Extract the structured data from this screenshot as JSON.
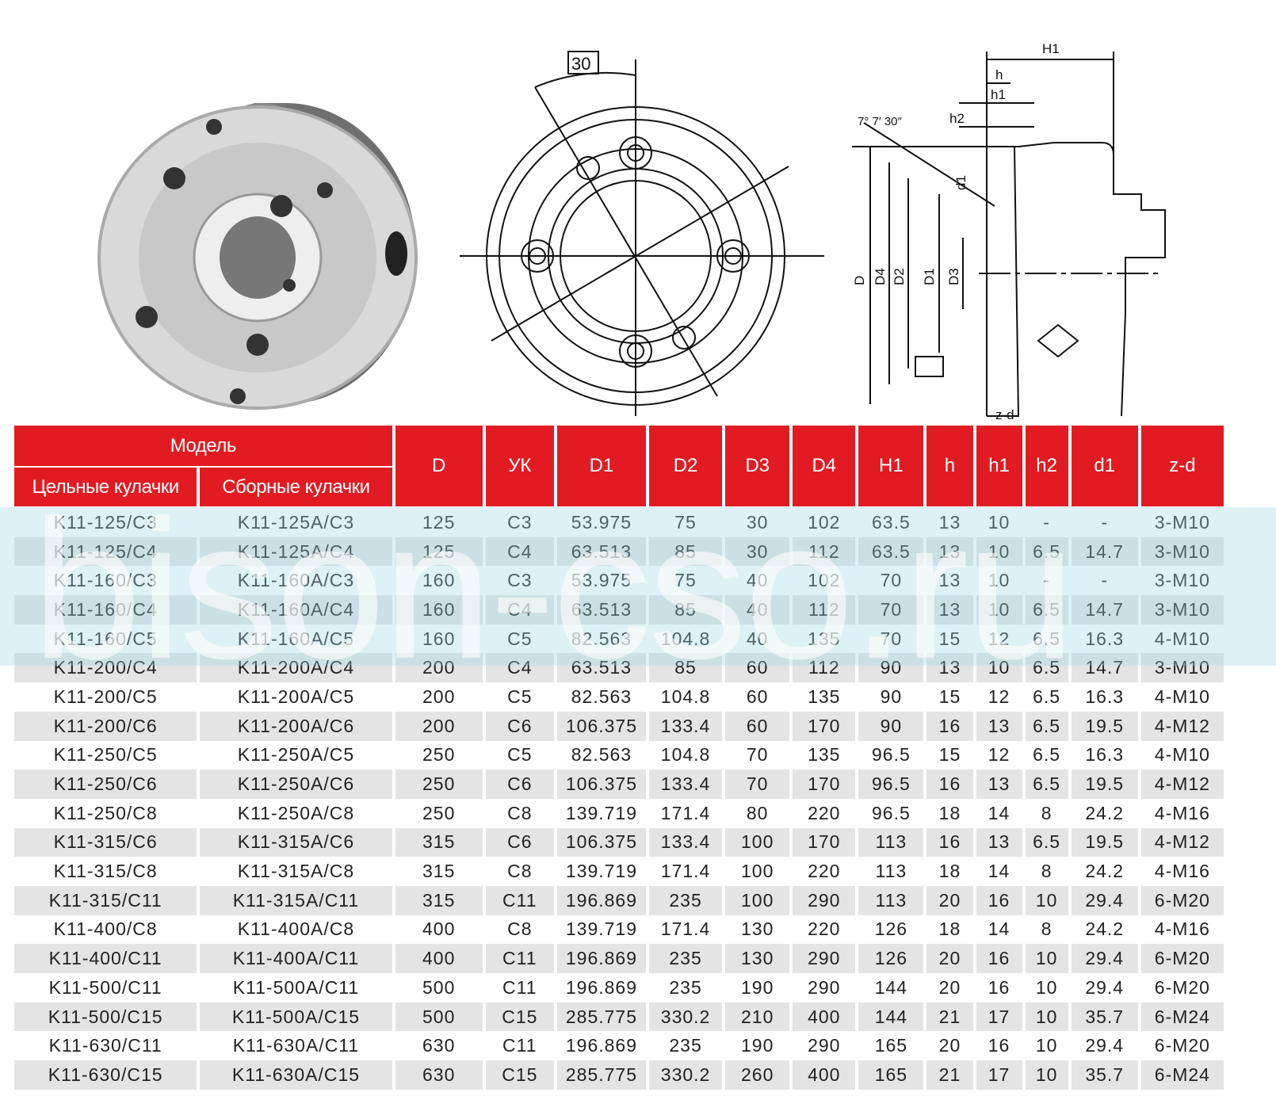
{
  "watermark": "bison-cso.ru",
  "drawing": {
    "angle_label": "30",
    "taper_label": "7° 7′ 30″",
    "dims": {
      "H1": "H1",
      "h": "h",
      "h1": "h1",
      "h2": "h2",
      "d1": "d1",
      "D": "D",
      "D4": "D4",
      "D2": "D2",
      "D1": "D1",
      "D3": "D3",
      "zd": "z-d"
    }
  },
  "table": {
    "group_header": "Модель",
    "sub_headers": [
      "Цельные кулачки",
      "Сборные кулачки"
    ],
    "columns": [
      "D",
      "УК",
      "D1",
      "D2",
      "D3",
      "D4",
      "H1",
      "h",
      "h1",
      "h2",
      "d1",
      "z-d"
    ],
    "rows": [
      [
        "K11-125/C3",
        "K11-125A/C3",
        "125",
        "C3",
        "53.975",
        "75",
        "30",
        "102",
        "63.5",
        "13",
        "10",
        "-",
        "-",
        "3-M10"
      ],
      [
        "K11-125/C4",
        "K11-125A/C4",
        "125",
        "C4",
        "63.513",
        "85",
        "30",
        "112",
        "63.5",
        "13",
        "10",
        "6.5",
        "14.7",
        "3-M10"
      ],
      [
        "K11-160/C3",
        "K11-160A/C3",
        "160",
        "C3",
        "53.975",
        "75",
        "40",
        "102",
        "70",
        "13",
        "10",
        "-",
        "-",
        "3-M10"
      ],
      [
        "K11-160/C4",
        "K11-160A/C4",
        "160",
        "C4",
        "63.513",
        "85",
        "40",
        "112",
        "70",
        "13",
        "10",
        "6.5",
        "14.7",
        "3-M10"
      ],
      [
        "K11-160/C5",
        "K11-160A/C5",
        "160",
        "C5",
        "82.563",
        "104.8",
        "40",
        "135",
        "70",
        "15",
        "12",
        "6.5",
        "16.3",
        "4-M10"
      ],
      [
        "K11-200/C4",
        "K11-200A/C4",
        "200",
        "C4",
        "63.513",
        "85",
        "60",
        "112",
        "90",
        "13",
        "10",
        "6.5",
        "14.7",
        "3-M10"
      ],
      [
        "K11-200/C5",
        "K11-200A/C5",
        "200",
        "C5",
        "82.563",
        "104.8",
        "60",
        "135",
        "90",
        "15",
        "12",
        "6.5",
        "16.3",
        "4-M10"
      ],
      [
        "K11-200/C6",
        "K11-200A/C6",
        "200",
        "C6",
        "106.375",
        "133.4",
        "60",
        "170",
        "90",
        "16",
        "13",
        "6.5",
        "19.5",
        "4-M12"
      ],
      [
        "K11-250/C5",
        "K11-250A/C5",
        "250",
        "C5",
        "82.563",
        "104.8",
        "70",
        "135",
        "96.5",
        "15",
        "12",
        "6.5",
        "16.3",
        "4-M10"
      ],
      [
        "K11-250/C6",
        "K11-250A/C6",
        "250",
        "C6",
        "106.375",
        "133.4",
        "70",
        "170",
        "96.5",
        "16",
        "13",
        "6.5",
        "19.5",
        "4-M12"
      ],
      [
        "K11-250/C8",
        "K11-250A/C8",
        "250",
        "C8",
        "139.719",
        "171.4",
        "80",
        "220",
        "96.5",
        "18",
        "14",
        "8",
        "24.2",
        "4-M16"
      ],
      [
        "K11-315/C6",
        "K11-315A/C6",
        "315",
        "C6",
        "106.375",
        "133.4",
        "100",
        "170",
        "113",
        "16",
        "13",
        "6.5",
        "19.5",
        "4-M12"
      ],
      [
        "K11-315/C8",
        "K11-315A/C8",
        "315",
        "C8",
        "139.719",
        "171.4",
        "100",
        "220",
        "113",
        "18",
        "14",
        "8",
        "24.2",
        "4-M16"
      ],
      [
        "K11-315/C11",
        "K11-315A/C11",
        "315",
        "C11",
        "196.869",
        "235",
        "100",
        "290",
        "113",
        "20",
        "16",
        "10",
        "29.4",
        "6-M20"
      ],
      [
        "K11-400/C8",
        "K11-400A/C8",
        "400",
        "C8",
        "139.719",
        "171.4",
        "130",
        "220",
        "126",
        "18",
        "14",
        "8",
        "24.2",
        "4-M16"
      ],
      [
        "K11-400/C11",
        "K11-400A/C11",
        "400",
        "C11",
        "196.869",
        "235",
        "130",
        "290",
        "126",
        "20",
        "16",
        "10",
        "29.4",
        "6-M20"
      ],
      [
        "K11-500/C11",
        "K11-500A/C11",
        "500",
        "C11",
        "196.869",
        "235",
        "190",
        "290",
        "144",
        "20",
        "16",
        "10",
        "29.4",
        "6-M20"
      ],
      [
        "K11-500/C15",
        "K11-500A/C15",
        "500",
        "C15",
        "285.775",
        "330.2",
        "210",
        "400",
        "144",
        "21",
        "17",
        "10",
        "35.7",
        "6-M24"
      ],
      [
        "K11-630/C11",
        "K11-630A/C11",
        "630",
        "C11",
        "196.869",
        "235",
        "190",
        "290",
        "165",
        "20",
        "16",
        "10",
        "29.4",
        "6-M20"
      ],
      [
        "K11-630/C15",
        "K11-630A/C15",
        "630",
        "C15",
        "285.775",
        "330.2",
        "260",
        "400",
        "165",
        "21",
        "17",
        "10",
        "35.7",
        "6-M24"
      ]
    ]
  },
  "colors": {
    "header_red": "#e21b22",
    "stripe_gray": "#e4e4e4"
  }
}
